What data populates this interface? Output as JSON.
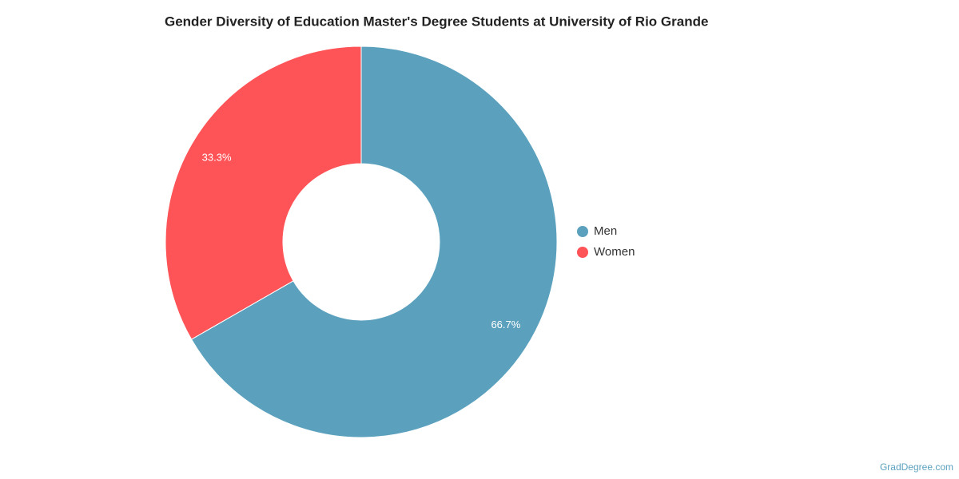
{
  "chart_data": {
    "type": "pie",
    "donut": true,
    "title": "Gender Diversity of Education Master's Degree Students at University of Rio Grande",
    "categories": [
      "Men",
      "Women"
    ],
    "values": [
      66.7,
      33.3
    ],
    "value_labels": [
      "66.7%",
      "33.3%"
    ],
    "colors": [
      "#5ba1be",
      "#fe5357"
    ],
    "legend": "right"
  },
  "footer": {
    "source": "GradDegree.com"
  }
}
